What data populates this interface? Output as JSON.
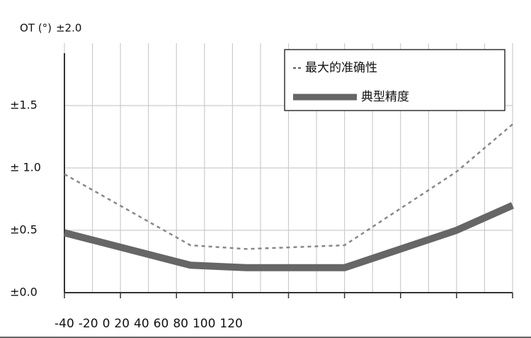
{
  "chart_data": {
    "type": "line",
    "y_label": "OT (°)",
    "xlim": [
      -40,
      120
    ],
    "xticks": [
      -40,
      -20,
      0,
      20,
      40,
      60,
      80,
      100,
      120
    ],
    "xgrid": [
      -40,
      -30,
      -20,
      -10,
      0,
      10,
      20,
      30,
      40,
      50,
      60,
      70,
      80,
      90,
      100,
      110,
      120
    ],
    "ylim": [
      0,
      2.0
    ],
    "yticks": [
      {
        "value": 0,
        "label": "±0.0"
      },
      {
        "value": 0.5,
        "label": "±0.5"
      },
      {
        "value": 1.0,
        "label": "± 1.0"
      },
      {
        "value": 1.5,
        "label": "±1.5"
      },
      {
        "value": 2.0,
        "label": "±2.0"
      }
    ],
    "grid": true,
    "legend": "upper right",
    "series": [
      {
        "name": "最大的准确性",
        "color": "#888888",
        "dashed": true,
        "x": [
          -40,
          5,
          25,
          60,
          100,
          120
        ],
        "values": [
          0.95,
          0.38,
          0.35,
          0.38,
          0.97,
          1.35
        ]
      },
      {
        "name": "典型精度",
        "color": "#666666",
        "dashed": false,
        "x": [
          -40,
          5,
          25,
          60,
          100,
          120
        ],
        "values": [
          0.48,
          0.22,
          0.2,
          0.2,
          0.5,
          0.7
        ]
      }
    ]
  }
}
